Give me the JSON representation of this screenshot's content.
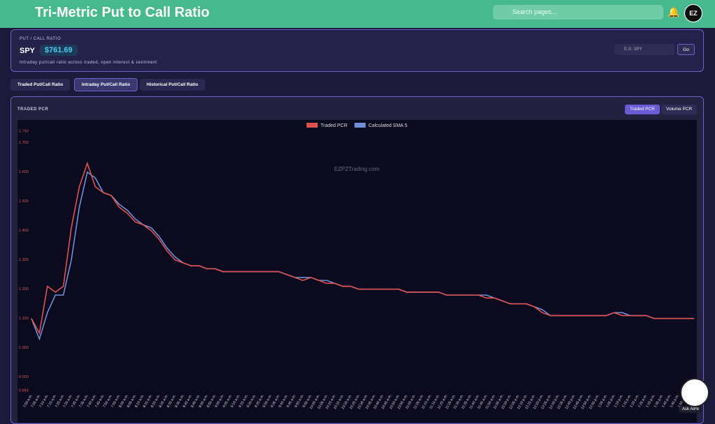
{
  "header": {
    "title": "Tri-Metric Put to Call Ratio",
    "search_placeholder": "Search pages...",
    "avatar": "EZ"
  },
  "panel": {
    "label": "PUT / CALL RATIO",
    "ticker": "SPY",
    "price": "$761.69",
    "description": "Intraday put/call ratio across traded, open interest & sentiment",
    "input_placeholder": "E.G. SPY",
    "button": "Go"
  },
  "tabs": [
    "Traded Put/Call Ratio",
    "Intraday Put/Call Ratio",
    "Historical Put/Call Ratio"
  ],
  "section": {
    "title": "TRADED PCR",
    "toggles": [
      "Traded PCR",
      "Volume PCR"
    ]
  },
  "ask_button": "Ask AiPe",
  "chart_data": {
    "type": "line",
    "watermark": "EZPZTrading.com",
    "legend": "top",
    "categories": [
      "7:00 a.m.",
      "7:05 a.m.",
      "7:10 a.m.",
      "7:15 a.m.",
      "7:20 a.m.",
      "7:25 a.m.",
      "7:30 a.m.",
      "7:35 a.m.",
      "7:40 a.m.",
      "7:45 a.m.",
      "7:50 a.m.",
      "7:55 a.m.",
      "8:00 a.m.",
      "8:05 a.m.",
      "8:10 a.m.",
      "8:15 a.m.",
      "8:20 a.m.",
      "8:25 a.m.",
      "8:30 a.m.",
      "8:35 a.m.",
      "8:40 a.m.",
      "8:45 a.m.",
      "8:50 a.m.",
      "8:55 a.m.",
      "9:00 a.m.",
      "9:05 a.m.",
      "9:10 a.m.",
      "9:15 a.m.",
      "9:20 a.m.",
      "9:25 a.m.",
      "9:30 a.m.",
      "9:35 a.m.",
      "9:40 a.m.",
      "9:45 a.m.",
      "9:50 a.m.",
      "9:55 a.m.",
      "10:00 a.m.",
      "10:05 a.m.",
      "10:10 a.m.",
      "10:15 a.m.",
      "10:20 a.m.",
      "10:25 a.m.",
      "10:30 a.m.",
      "10:35 a.m.",
      "10:40 a.m.",
      "10:45 a.m.",
      "10:50 a.m.",
      "10:55 a.m.",
      "11:00 a.m.",
      "11:05 a.m.",
      "11:10 a.m.",
      "11:15 a.m.",
      "11:20 a.m.",
      "11:25 a.m.",
      "11:30 a.m.",
      "11:35 a.m.",
      "11:40 a.m.",
      "11:45 a.m.",
      "11:50 a.m.",
      "11:55 a.m.",
      "12:00 p.m.",
      "12:05 p.m.",
      "12:10 p.m.",
      "12:15 p.m.",
      "12:20 p.m.",
      "12:25 p.m.",
      "12:30 p.m.",
      "12:35 p.m.",
      "12:40 p.m.",
      "12:45 p.m.",
      "12:50 p.m.",
      "12:55 p.m.",
      "1:00 p.m.",
      "1:05 p.m.",
      "1:10 p.m.",
      "1:15 p.m.",
      "1:20 p.m.",
      "1:25 p.m.",
      "1:30 p.m.",
      "1:35 p.m.",
      "1:40 p.m.",
      "1:45 p.m.",
      "1:50 p.m.",
      "1:55 p.m."
    ],
    "series": [
      {
        "name": "Traded PCR",
        "color": "#e0524f",
        "values": [
          1.1,
          1.05,
          1.21,
          1.19,
          1.21,
          1.41,
          1.55,
          1.63,
          1.55,
          1.53,
          1.52,
          1.48,
          1.46,
          1.43,
          1.42,
          1.4,
          1.37,
          1.33,
          1.3,
          1.29,
          1.28,
          1.28,
          1.27,
          1.27,
          1.26,
          1.26,
          1.26,
          1.26,
          1.26,
          1.26,
          1.26,
          1.26,
          1.25,
          1.24,
          1.23,
          1.24,
          1.23,
          1.22,
          1.22,
          1.21,
          1.21,
          1.2,
          1.2,
          1.2,
          1.2,
          1.2,
          1.2,
          1.19,
          1.19,
          1.19,
          1.19,
          1.19,
          1.18,
          1.18,
          1.18,
          1.18,
          1.18,
          1.17,
          1.17,
          1.16,
          1.15,
          1.15,
          1.15,
          1.14,
          1.12,
          1.11,
          1.11,
          1.11,
          1.11,
          1.11,
          1.11,
          1.11,
          1.11,
          1.12,
          1.11,
          1.11,
          1.11,
          1.11,
          1.1,
          1.1,
          1.1,
          1.1,
          1.1,
          1.1
        ]
      },
      {
        "name": "Calculated SMA 5",
        "color": "#6f8fd6",
        "values": [
          1.1,
          1.03,
          1.12,
          1.18,
          1.18,
          1.3,
          1.48,
          1.6,
          1.58,
          1.53,
          1.52,
          1.49,
          1.47,
          1.44,
          1.42,
          1.41,
          1.38,
          1.34,
          1.31,
          1.29,
          1.28,
          1.28,
          1.27,
          1.27,
          1.26,
          1.26,
          1.26,
          1.26,
          1.26,
          1.26,
          1.26,
          1.26,
          1.25,
          1.24,
          1.24,
          1.24,
          1.23,
          1.23,
          1.22,
          1.21,
          1.21,
          1.2,
          1.2,
          1.2,
          1.2,
          1.2,
          1.2,
          1.19,
          1.19,
          1.19,
          1.19,
          1.19,
          1.18,
          1.18,
          1.18,
          1.18,
          1.18,
          1.18,
          1.17,
          1.16,
          1.15,
          1.15,
          1.15,
          1.14,
          1.13,
          1.11,
          1.11,
          1.11,
          1.11,
          1.11,
          1.11,
          1.11,
          1.11,
          1.12,
          1.12,
          1.11,
          1.11,
          1.11,
          1.1,
          1.1,
          1.1,
          1.1,
          1.1,
          1.1
        ]
      }
    ],
    "ylim": [
      0.854,
      1.74
    ],
    "yticks": [
      0.854,
      {
        "value": 0.9,
        "label": "0.900"
      },
      {
        "value": 1,
        "label": "1.000"
      },
      {
        "value": 1.1,
        "label": "1.100"
      },
      {
        "value": 1.2,
        "label": "1.200"
      },
      {
        "value": 1.3,
        "label": "1.300"
      },
      {
        "value": 1.4,
        "label": "1.400"
      },
      {
        "value": 1.5,
        "label": "1.500"
      },
      {
        "value": 1.6,
        "label": "1.600"
      },
      {
        "value": 1.7,
        "label": "1.700"
      },
      {
        "value": 1.74,
        "label": "1.740"
      }
    ],
    "grid": false
  }
}
